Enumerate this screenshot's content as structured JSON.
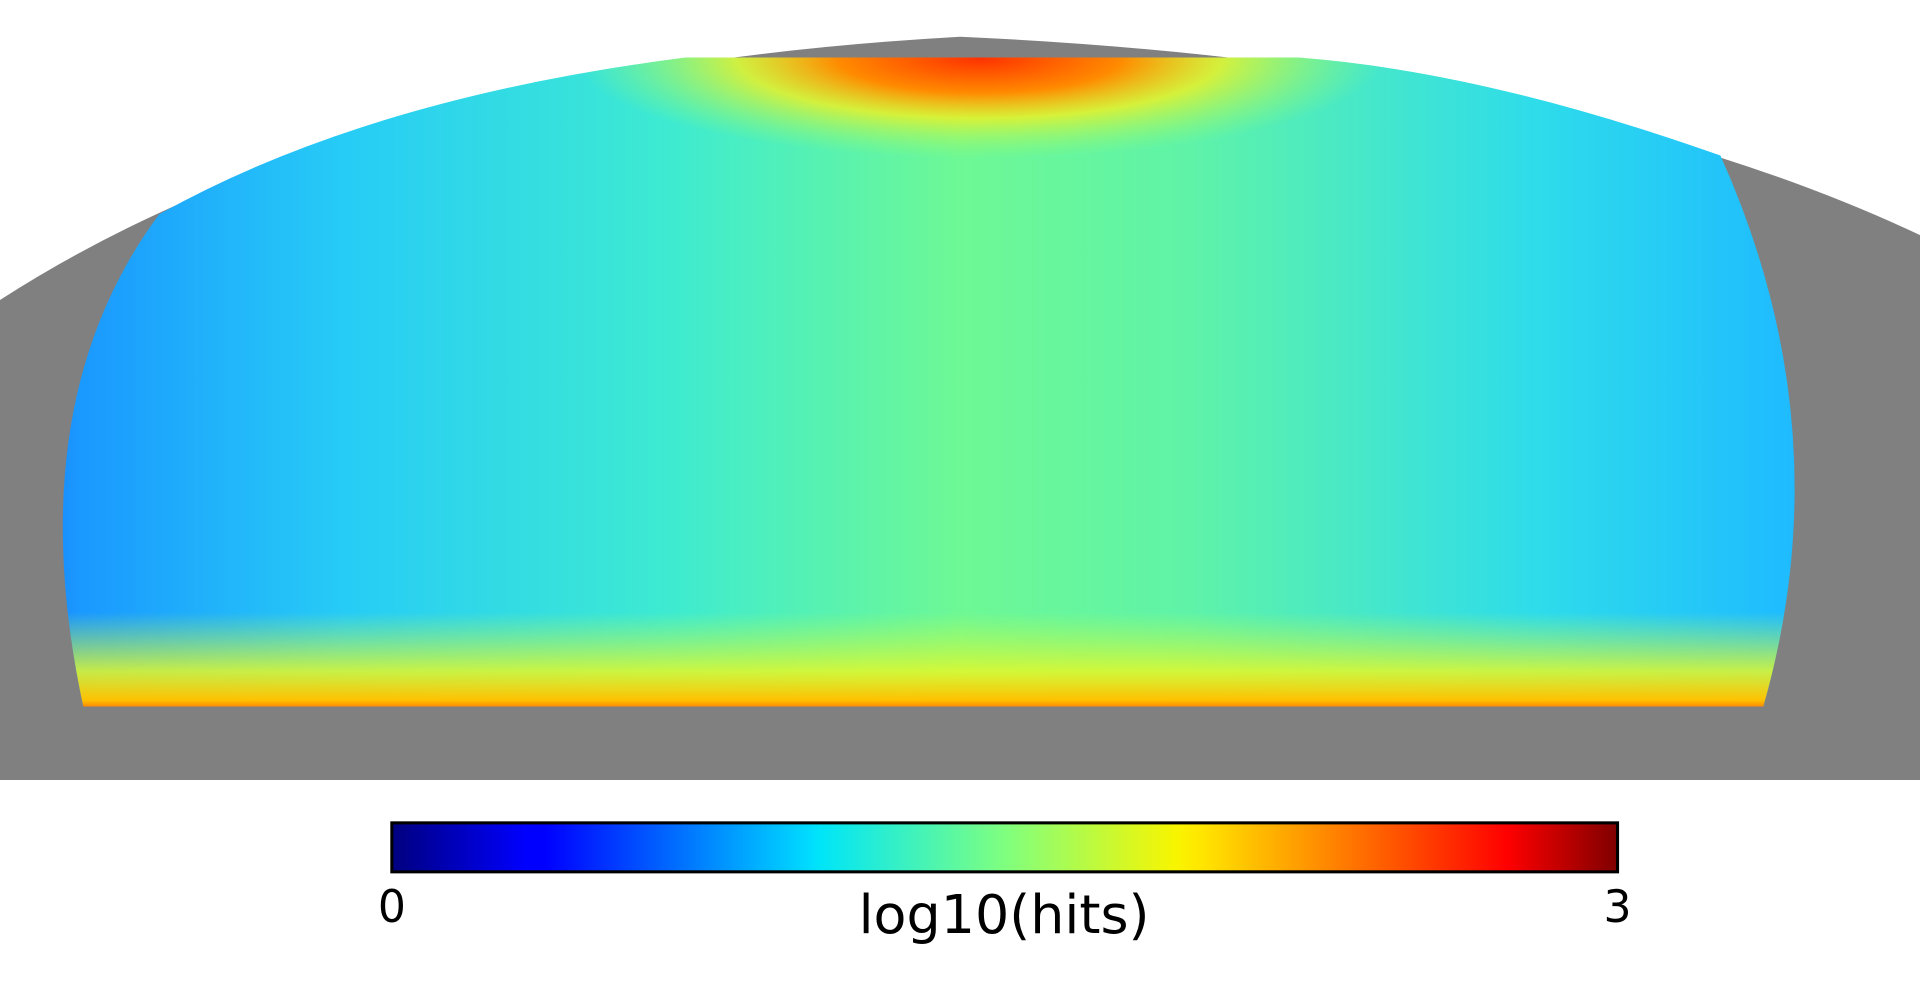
{
  "chart_data": {
    "type": "sky-map",
    "projection": "mollweide",
    "colormap": "jet",
    "colorbar": {
      "label": "log10(hits)",
      "clim": [
        0,
        3
      ],
      "ticks": [
        0,
        3
      ]
    }
  }
}
